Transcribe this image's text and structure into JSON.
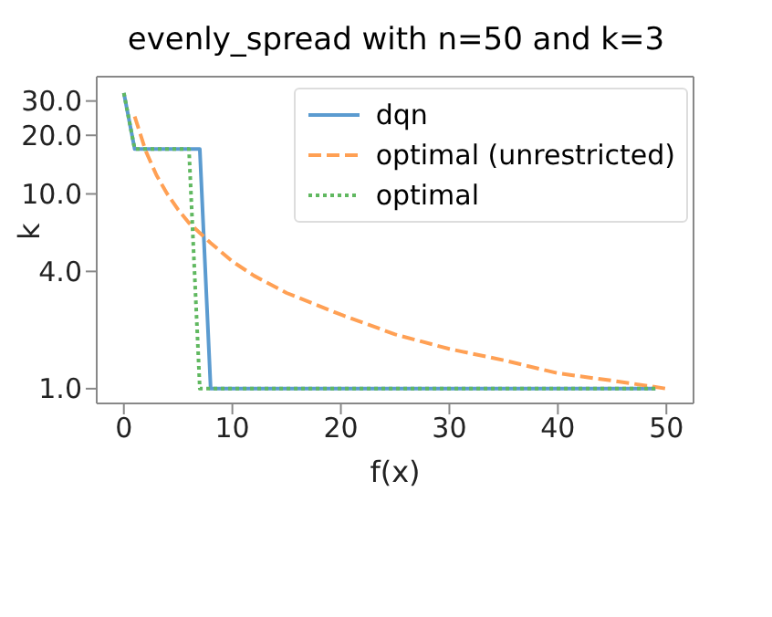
{
  "chart_data": {
    "type": "line",
    "title": "evenly_spread with n=50 and k=3",
    "xlabel": "f(x)",
    "ylabel": "k",
    "log": "y",
    "xlim": [
      -2.5,
      52.5
    ],
    "ylim": [
      0.84,
      40
    ],
    "xticks": [
      0,
      10,
      20,
      30,
      40,
      50
    ],
    "yticks": [
      {
        "value": 1,
        "label": "1.0"
      },
      {
        "value": 4,
        "label": "4.0"
      },
      {
        "value": 10,
        "label": "10.0"
      },
      {
        "value": 20,
        "label": "20.0"
      },
      {
        "value": 30,
        "label": "30.0"
      }
    ],
    "legend": "top right",
    "marker": "none",
    "series": [
      {
        "name": "dqn",
        "color": "#5b9bd0",
        "line_style": "solid",
        "x": [
          0,
          1,
          7,
          8,
          49
        ],
        "values": [
          33,
          17,
          17,
          1,
          1
        ]
      },
      {
        "name": "optimal (unrestricted)",
        "color": "#ffa054",
        "line_style": "dashed",
        "x": [
          1,
          2,
          3,
          4,
          5,
          6,
          8,
          10,
          12,
          15,
          20,
          25,
          30,
          35,
          40,
          45,
          50
        ],
        "values": [
          25,
          16.7,
          12.5,
          10,
          8.3,
          7.1,
          5.6,
          4.5,
          3.8,
          3.1,
          2.4,
          1.9,
          1.6,
          1.4,
          1.2,
          1.1,
          1.0
        ]
      },
      {
        "name": "optimal",
        "color": "#60b860",
        "line_style": "dotted",
        "x": [
          0,
          1,
          6,
          7,
          49
        ],
        "values": [
          33,
          17,
          17,
          1,
          1
        ]
      }
    ]
  }
}
